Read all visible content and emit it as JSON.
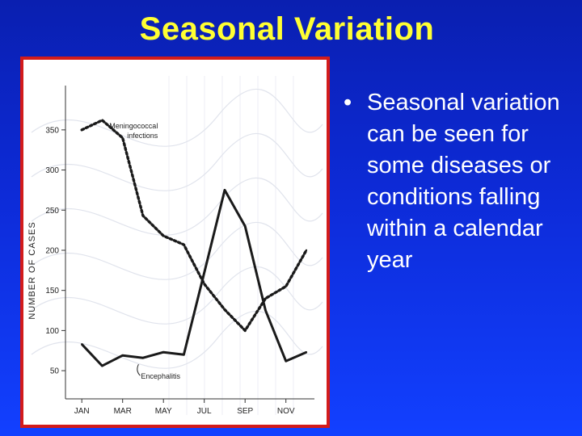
{
  "slide": {
    "title": "Seasonal Variation",
    "bullet_text": "Seasonal variation can be seen for some diseases or conditions falling within a calendar year",
    "bullet_symbol": "•"
  },
  "colors": {
    "background": "#1035e8",
    "title": "#ffff33",
    "frame_border": "#d31b1b",
    "bullet_text": "#ffffff"
  },
  "chart_data": {
    "type": "line",
    "ylabel": "NUMBER OF CASES",
    "xlabel": "",
    "y_ticks": [
      50,
      100,
      150,
      200,
      250,
      300,
      350
    ],
    "ylim": [
      35,
      375
    ],
    "x_tick_labels": [
      "JAN",
      "MAR",
      "MAY",
      "JUL",
      "SEP",
      "NOV"
    ],
    "x_tick_positions": [
      1,
      3,
      5,
      7,
      9,
      11
    ],
    "xlim": [
      0.2,
      12.2
    ],
    "grid": false,
    "annotations": [
      {
        "label": "Meningococcal infections",
        "series": "meningococcal"
      },
      {
        "label": "Encephalitis",
        "series": "encephalitis"
      }
    ],
    "series": [
      {
        "key": "meningococcal",
        "name": "Meningococcal infections",
        "style": "dotted",
        "x": [
          1,
          2,
          3,
          4,
          5,
          6,
          7,
          8,
          9,
          10,
          11,
          12
        ],
        "values": [
          350,
          362,
          340,
          243,
          218,
          207,
          158,
          126,
          100,
          140,
          155,
          200
        ]
      },
      {
        "key": "encephalitis",
        "name": "Encephalitis",
        "style": "solid",
        "x": [
          1,
          2,
          3,
          4,
          5,
          6,
          7,
          8,
          9,
          10,
          11,
          12
        ],
        "values": [
          83,
          56,
          69,
          66,
          73,
          70,
          172,
          275,
          230,
          125,
          62,
          73
        ]
      }
    ]
  }
}
